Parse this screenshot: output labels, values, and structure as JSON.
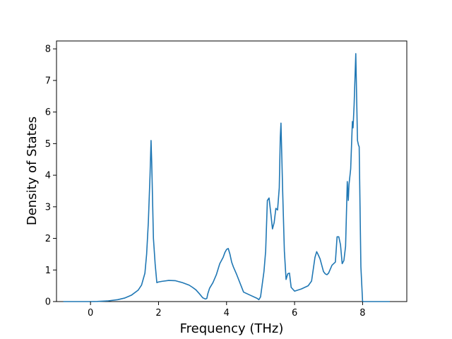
{
  "chart_data": {
    "type": "line",
    "title": "",
    "xlabel": "Frequency (THz)",
    "ylabel": "Density of States",
    "xlim": [
      -1.0,
      9.3
    ],
    "ylim": [
      0,
      8.25
    ],
    "xticks": [
      0,
      2,
      4,
      6,
      8
    ],
    "yticks": [
      0,
      1,
      2,
      3,
      4,
      5,
      6,
      7,
      8
    ],
    "grid": false,
    "legend": "none",
    "series": [
      {
        "color": "#1f77b4",
        "x": [
          -0.8,
          0.0,
          0.2,
          0.5,
          0.8,
          1.0,
          1.2,
          1.4,
          1.5,
          1.6,
          1.65,
          1.7,
          1.75,
          1.78,
          1.8,
          1.85,
          1.9,
          1.95,
          2.0,
          2.1,
          2.3,
          2.5,
          2.7,
          2.9,
          3.0,
          3.1,
          3.2,
          3.3,
          3.38,
          3.42,
          3.45,
          3.5,
          3.6,
          3.7,
          3.8,
          3.9,
          3.95,
          4.0,
          4.05,
          4.1,
          4.15,
          4.2,
          4.3,
          4.5,
          4.7,
          4.9,
          4.95,
          5.0,
          5.05,
          5.1,
          5.15,
          5.2,
          5.25,
          5.3,
          5.35,
          5.4,
          5.45,
          5.5,
          5.55,
          5.58,
          5.6,
          5.65,
          5.7,
          5.75,
          5.8,
          5.85,
          5.9,
          6.0,
          6.2,
          6.4,
          6.5,
          6.6,
          6.65,
          6.7,
          6.75,
          6.8,
          6.85,
          6.9,
          6.95,
          7.0,
          7.1,
          7.2,
          7.25,
          7.3,
          7.35,
          7.4,
          7.45,
          7.5,
          7.55,
          7.58,
          7.6,
          7.65,
          7.7,
          7.72,
          7.75,
          7.8,
          7.85,
          7.88,
          7.9,
          7.95,
          8.0,
          8.05,
          8.1,
          8.3,
          8.5,
          8.8
        ],
        "y": [
          0.0,
          0.0,
          0.005,
          0.02,
          0.06,
          0.11,
          0.2,
          0.36,
          0.52,
          0.9,
          1.5,
          2.5,
          4.0,
          5.1,
          4.4,
          2.0,
          1.2,
          0.6,
          0.62,
          0.64,
          0.67,
          0.66,
          0.6,
          0.52,
          0.45,
          0.37,
          0.25,
          0.12,
          0.08,
          0.1,
          0.25,
          0.42,
          0.6,
          0.85,
          1.2,
          1.4,
          1.55,
          1.65,
          1.68,
          1.5,
          1.25,
          1.1,
          0.85,
          0.3,
          0.2,
          0.1,
          0.06,
          0.15,
          0.55,
          0.95,
          1.6,
          3.2,
          3.28,
          2.8,
          2.3,
          2.5,
          2.95,
          2.9,
          3.6,
          5.2,
          5.65,
          3.5,
          1.6,
          0.7,
          0.88,
          0.9,
          0.45,
          0.33,
          0.4,
          0.5,
          0.65,
          1.4,
          1.58,
          1.47,
          1.35,
          1.15,
          0.95,
          0.88,
          0.85,
          0.9,
          1.15,
          1.25,
          2.05,
          2.05,
          1.8,
          1.2,
          1.3,
          1.75,
          3.8,
          3.2,
          3.7,
          4.2,
          5.7,
          5.5,
          6.2,
          7.85,
          5.1,
          4.95,
          4.9,
          1.1,
          0.0,
          0.0,
          0.0,
          0.0,
          0.0,
          0.0
        ]
      }
    ]
  }
}
